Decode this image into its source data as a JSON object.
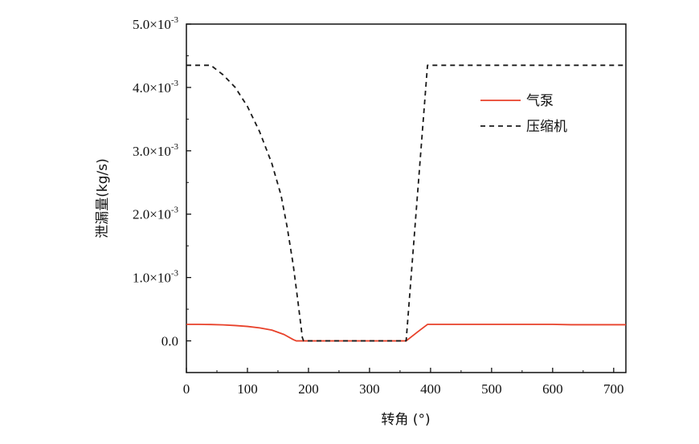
{
  "chart_data": {
    "type": "line",
    "title": "",
    "xlabel": "转角 (°)",
    "ylabel": "泄漏量(kg/s)",
    "xlim": [
      0,
      720
    ],
    "ylim": [
      -0.0005,
      0.005
    ],
    "x_ticks": [
      0,
      100,
      200,
      300,
      400,
      500,
      600,
      700
    ],
    "x_tick_labels": [
      "0",
      "100",
      "200",
      "300",
      "400",
      "500",
      "600",
      "700"
    ],
    "y_ticks": [
      0,
      0.001,
      0.002,
      0.003,
      0.004,
      0.005
    ],
    "y_tick_labels": [
      {
        "mantissa": "0.0",
        "exp": ""
      },
      {
        "mantissa": "1.0×10",
        "exp": "-3"
      },
      {
        "mantissa": "2.0×10",
        "exp": "-3"
      },
      {
        "mantissa": "3.0×10",
        "exp": "-3"
      },
      {
        "mantissa": "4.0×10",
        "exp": "-3"
      },
      {
        "mantissa": "5.0×10",
        "exp": "-3"
      }
    ],
    "legend_position": "top-right",
    "series": [
      {
        "name": "气泵",
        "color": "#e8412a",
        "dash": "solid",
        "x": [
          0,
          20,
          40,
          60,
          80,
          100,
          120,
          140,
          160,
          175,
          180,
          200,
          300,
          360,
          380,
          395,
          420,
          500,
          600,
          630,
          700,
          720
        ],
        "y": [
          0.00026,
          0.00026,
          0.000258,
          0.000252,
          0.000242,
          0.000228,
          0.000205,
          0.00017,
          0.0001,
          2e-05,
          0,
          0,
          0,
          0,
          0.00015,
          0.00026,
          0.00026,
          0.00026,
          0.00026,
          0.000255,
          0.000255,
          0.000255
        ]
      },
      {
        "name": "压缩机",
        "color": "#1a1a1a",
        "dash": "dashed",
        "x": [
          0,
          40,
          60,
          80,
          100,
          120,
          140,
          155,
          165,
          175,
          183,
          190,
          192,
          200,
          300,
          360,
          395,
          400,
          500,
          600,
          720
        ],
        "y": [
          0.00435,
          0.00435,
          0.0042,
          0.004,
          0.0037,
          0.0033,
          0.0028,
          0.0023,
          0.0018,
          0.0012,
          0.0006,
          5e-05,
          0,
          0,
          0,
          0,
          0.00435,
          0.00435,
          0.00435,
          0.00435,
          0.00435
        ]
      }
    ]
  }
}
